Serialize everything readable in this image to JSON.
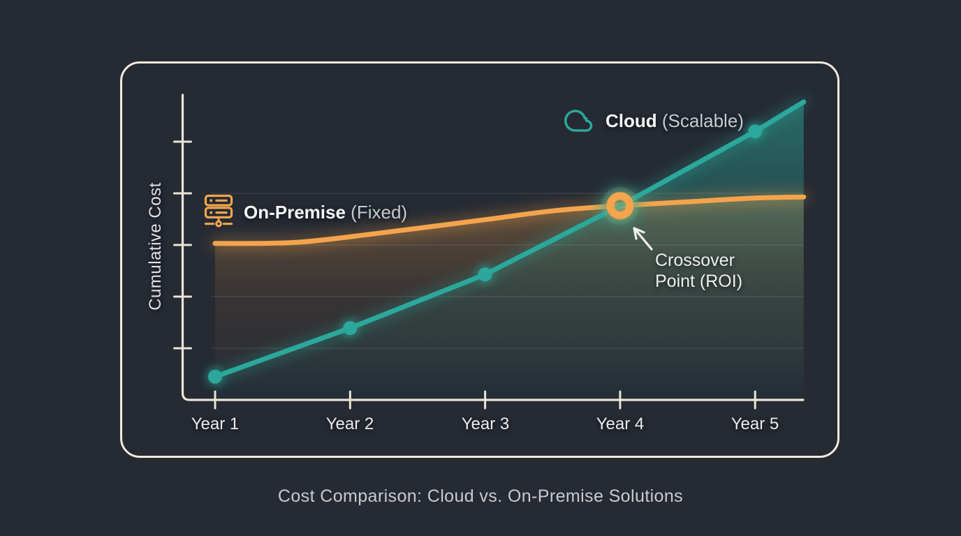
{
  "title": "Cost Comparison: Cloud vs. On-Premise Solutions",
  "colors": {
    "background": "#252a33",
    "card_border": "#efebdc",
    "axis": "#e9e5d7",
    "cloud_teal": "#2ba89b",
    "onprem_orange": "#f3a44c",
    "text_bright": "#f4f5f6",
    "text_dim": "#c6cbd1"
  },
  "legend": {
    "cloud": {
      "icon": "cloud-icon",
      "name": "Cloud",
      "qualifier": " (Scalable)"
    },
    "onprem": {
      "icon": "server-icon",
      "name": "On-Premise",
      "qualifier": " (Fixed)"
    }
  },
  "annotation": {
    "line1": "Crossover",
    "line2": "Point (ROI)"
  },
  "chart_data": {
    "type": "line",
    "title": "Cost Comparison: Cloud vs. On-Premise Solutions",
    "xlabel": "",
    "ylabel": "Cumulative Cost",
    "categories": [
      "Year 1",
      "Year 2",
      "Year 3",
      "Year 4",
      "Year 5"
    ],
    "x_years": [
      1,
      2,
      3,
      4,
      5
    ],
    "ylim": [
      0,
      6
    ],
    "ytick_values": [
      1,
      2,
      3,
      4,
      5
    ],
    "grid_values": [
      1,
      2,
      3,
      4
    ],
    "grid": true,
    "legend_position": "floating-inline",
    "series": [
      {
        "id": "cloud",
        "name": "Cloud (Scalable)",
        "color": "#2ba89b",
        "interpolation": "linear",
        "x": [
          1,
          2,
          3,
          4,
          5,
          5.36
        ],
        "values": [
          0.45,
          1.39,
          2.43,
          3.76,
          5.2,
          5.77
        ],
        "marker_x": [
          1,
          2,
          3,
          5
        ]
      },
      {
        "id": "onprem",
        "name": "On-Premise (Fixed)",
        "color": "#f3a44c",
        "interpolation": "smooth",
        "x": [
          1,
          1.6,
          2.25,
          3,
          3.5,
          4,
          4.6,
          5,
          5.36
        ],
        "values": [
          3.03,
          3.05,
          3.24,
          3.49,
          3.66,
          3.76,
          3.85,
          3.91,
          3.93
        ]
      }
    ],
    "crossover": {
      "x": 4,
      "value": 3.76,
      "label": "Crossover Point (ROI)"
    }
  }
}
